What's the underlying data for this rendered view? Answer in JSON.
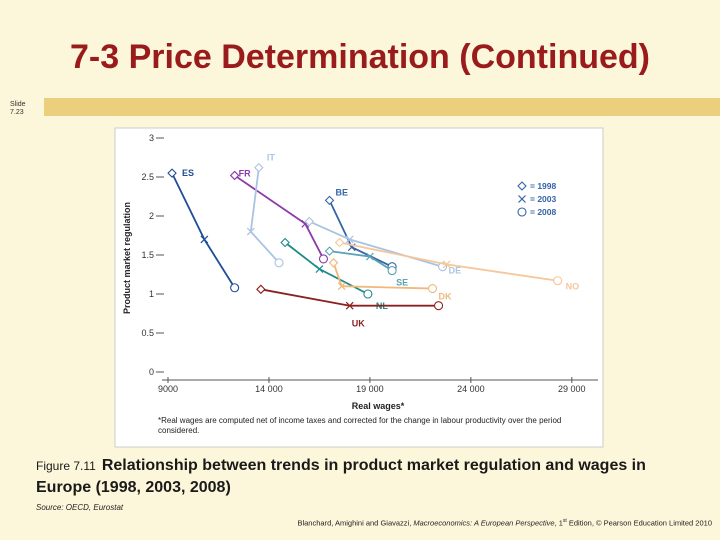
{
  "slide": {
    "title": "7-3  Price Determination (Continued)",
    "slide_number": "Slide 7.23",
    "figure_number": "Figure 7.11",
    "caption": "Relationship between trends in product market regulation and wages in Europe (1998, 2003, 2008)",
    "source": "Source: OECD, Eurostat",
    "citation_prefix": "Blanchard, Amighini and Giavazzi, ",
    "citation_book": "Macroeconomics: A European Perspective",
    "citation_edition": ", 1",
    "citation_sup": "st",
    "citation_suffix": " Edition, © Pearson Education Limited 2010",
    "accent_color": "#991b1b"
  },
  "chart_data": {
    "type": "line",
    "title": "",
    "xlabel": "Real wages*",
    "ylabel": "Product market regulation",
    "xlim": [
      9000,
      30000
    ],
    "ylim": [
      0,
      3
    ],
    "xticks": [
      9000,
      14000,
      19000,
      24000,
      29000
    ],
    "xtick_labels": [
      "9000",
      "14 000",
      "19 000",
      "24 000",
      "29 000"
    ],
    "yticks": [
      0,
      0.5,
      1,
      1.5,
      2,
      2.5,
      3
    ],
    "ytick_labels": [
      "0",
      "0.5",
      "1",
      "1.5",
      "2",
      "2.5",
      "3"
    ],
    "grid": false,
    "footnote": "*Real wages are computed net of income taxes and corrected for the change in labour productivity over the period considered.",
    "legend": {
      "placement": "top-right",
      "entries": [
        {
          "marker": "diamond",
          "label": "= 1998"
        },
        {
          "marker": "cross",
          "label": "= 2003"
        },
        {
          "marker": "circle",
          "label": "= 2008"
        }
      ]
    },
    "series": [
      {
        "name": "ES",
        "color": "#1f4e96",
        "x": [
          9200,
          10800,
          12300
        ],
        "y": [
          2.55,
          1.7,
          1.08
        ]
      },
      {
        "name": "FR",
        "color": "#8b3aa8",
        "x": [
          12300,
          15800,
          16700
        ],
        "y": [
          2.52,
          1.9,
          1.45
        ]
      },
      {
        "name": "IT",
        "color": "#a9c3e3",
        "x": [
          13500,
          13100,
          14500
        ],
        "y": [
          2.62,
          1.8,
          1.4
        ]
      },
      {
        "name": "BE",
        "color": "#3563a8",
        "x": [
          17000,
          18100,
          20100
        ],
        "y": [
          2.2,
          1.6,
          1.35
        ]
      },
      {
        "name": "NL",
        "color": "#1d8a8a",
        "x": [
          14800,
          16500,
          18900
        ],
        "y": [
          1.66,
          1.32,
          1.0
        ]
      },
      {
        "name": "DE",
        "color": "#a9c3e3",
        "x": [
          16000,
          18000,
          22600
        ],
        "y": [
          1.93,
          1.7,
          1.35
        ]
      },
      {
        "name": "SE",
        "color": "#5aa3b3",
        "x": [
          17000,
          19000,
          20100
        ],
        "y": [
          1.55,
          1.48,
          1.3
        ]
      },
      {
        "name": "DK",
        "color": "#f0b87a",
        "x": [
          17200,
          17600,
          22100
        ],
        "y": [
          1.4,
          1.1,
          1.07
        ]
      },
      {
        "name": "NO",
        "color": "#f5c79a",
        "x": [
          17500,
          22800,
          28300
        ],
        "y": [
          1.66,
          1.38,
          1.17
        ]
      },
      {
        "name": "UK",
        "color": "#8b2020",
        "x": [
          13600,
          18000,
          22400
        ],
        "y": [
          1.06,
          0.85,
          0.85
        ]
      }
    ]
  }
}
